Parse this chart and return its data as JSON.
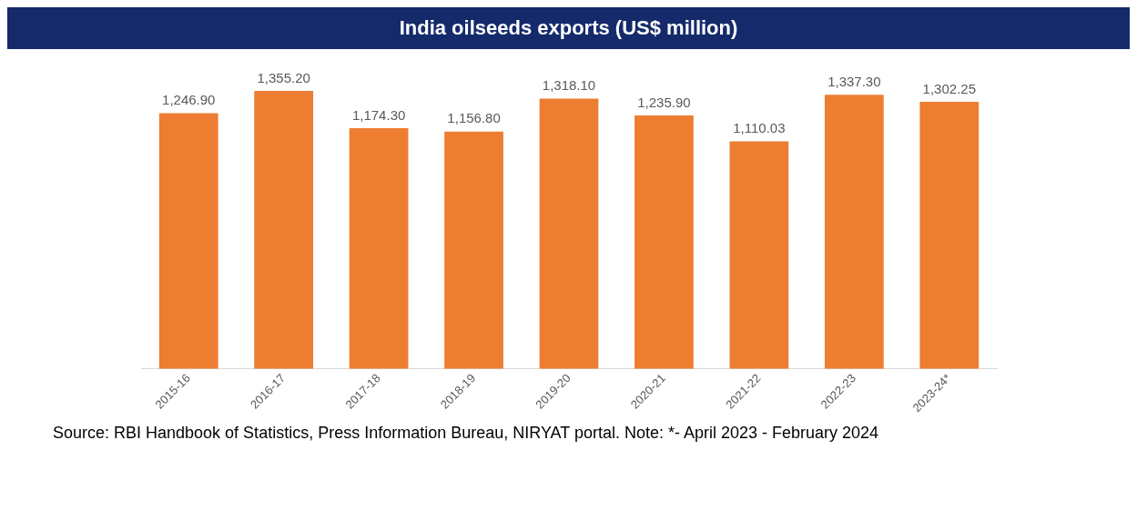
{
  "chart_data": {
    "type": "bar",
    "title": "India oilseeds exports (US$ million)",
    "categories": [
      "2015-16",
      "2016-17",
      "2017-18",
      "2018-19",
      "2019-20",
      "2020-21",
      "2021-22",
      "2022-23",
      "2023-24*"
    ],
    "values": [
      1246.9,
      1355.2,
      1174.3,
      1156.8,
      1318.1,
      1235.9,
      1110.03,
      1337.3,
      1302.25
    ],
    "value_labels": [
      "1,246.90",
      "1,355.20",
      "1,174.30",
      "1,156.80",
      "1,318.10",
      "1,235.90",
      "1,110.03",
      "1,337.30",
      "1,302.25"
    ],
    "color": "#ed7d31",
    "annotations": [
      "Source: RBI Handbook of Statistics, Press Information Bureau, NIRYAT portal. Note: *- April 2023 - February 2024"
    ]
  }
}
